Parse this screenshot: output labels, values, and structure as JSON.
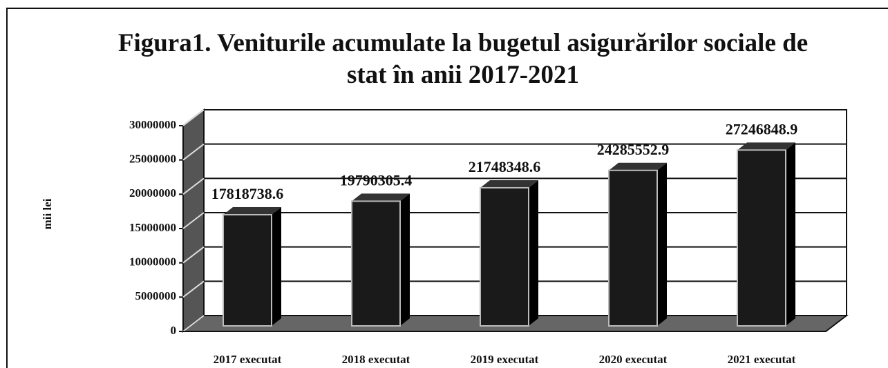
{
  "chart_data": {
    "type": "bar3d",
    "title": "Figura1. Veniturile acumulate la bugetul asigurărilor sociale de stat în anii 2017-2021",
    "ylabel": "mii lei",
    "categories": [
      "2017 executat",
      "2018 executat",
      "2019 executat",
      "2020 executat",
      "2021 executat"
    ],
    "values": [
      17818738.6,
      19790305.4,
      21748348.6,
      24285552.9,
      27246848.9
    ],
    "color": "#1a1a1a",
    "ylim": [
      0,
      30000000
    ],
    "yticks": [
      0,
      5000000,
      10000000,
      15000000,
      20000000,
      25000000,
      30000000
    ],
    "grid": true
  }
}
